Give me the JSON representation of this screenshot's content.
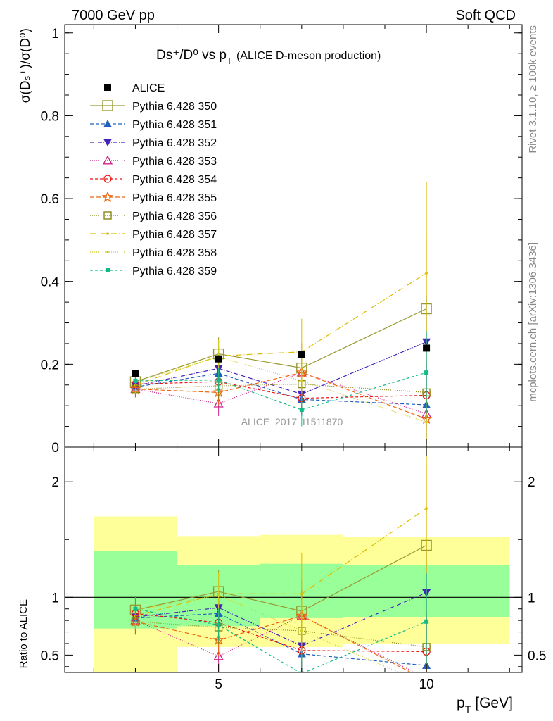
{
  "header": {
    "left_label": "7000 GeV pp",
    "right_label": "Soft QCD"
  },
  "side_labels": {
    "rivet": "Rivet 3.1.10, ≥ 100k events",
    "mcplots": "mcplots.cern.ch [arXiv:1306.3436]"
  },
  "watermark": "ALICE_2017_I1511870",
  "colors": {
    "ratio_band_outer": "#ffff99",
    "ratio_band_inner": "#99ff99",
    "reference_line": "#000000"
  },
  "chart_data": {
    "type": "line",
    "title_main": "Ds⁺/D⁰ vs p",
    "title_sub": "T",
    "title_extra": "(ALICE D-meson production)",
    "xlabel": "p",
    "xlabel_sub": "T",
    "xlabel_unit": "[GeV]",
    "ylabel": "σ(Dₛ⁺)/σ(D⁰)",
    "ratio_ylabel": "Ratio to ALICE",
    "xlim": [
      1.3,
      12.3
    ],
    "ylim": [
      0,
      1.02
    ],
    "ratio_ylim": [
      0.35,
      2.3
    ],
    "x_ticks": [
      5,
      10
    ],
    "y_ticks": [
      0,
      0.2,
      0.4,
      0.6,
      0.8,
      1
    ],
    "y_tick_labels": [
      "0",
      "0.2",
      "0.4",
      "0.6",
      "0.8",
      "1"
    ],
    "ratio_ticks": [
      0.5,
      1,
      2
    ],
    "ratio_tick_labels": [
      "0.5",
      "1",
      "2"
    ],
    "grid": false,
    "legend_position": "top-left",
    "x": [
      3,
      5,
      7,
      10
    ],
    "data": {
      "name": "ALICE",
      "x": [
        3,
        5,
        7,
        10
      ],
      "values": [
        0.178,
        0.213,
        0.224,
        0.239
      ],
      "bins": [
        [
          2,
          4
        ],
        [
          4,
          6
        ],
        [
          6,
          8
        ],
        [
          8,
          12
        ]
      ],
      "band_outer": [
        [
          0.35,
          1.7
        ],
        [
          0.57,
          1.53
        ],
        [
          0.57,
          1.54
        ],
        [
          0.6,
          1.52
        ]
      ],
      "band_inner": [
        [
          0.73,
          1.4
        ],
        [
          0.75,
          1.28
        ],
        [
          0.82,
          1.29
        ],
        [
          0.83,
          1.28
        ]
      ]
    },
    "series": [
      {
        "name": "Pythia 6.428 350",
        "color": "#999933",
        "marker": "square-open",
        "dash": "",
        "values": [
          0.158,
          0.225,
          0.191,
          0.334
        ],
        "err": [
          0.02,
          0.04,
          0.06,
          0.17
        ],
        "ratio": [
          0.89,
          1.05,
          0.88,
          1.45
        ]
      },
      {
        "name": "Pythia 6.428 351",
        "color": "#2060c0",
        "marker": "triangle-up",
        "dash": "5,3",
        "values": [
          0.145,
          0.178,
          0.115,
          0.102
        ],
        "err": [
          0.02,
          0.03,
          0.04,
          0.08
        ],
        "ratio": [
          0.82,
          0.86,
          0.51,
          0.41
        ]
      },
      {
        "name": "Pythia 6.428 352",
        "color": "#4422bb",
        "marker": "triangle-down",
        "dash": "6,2,1,2",
        "values": [
          0.148,
          0.19,
          0.128,
          0.254
        ],
        "err": [
          0.02,
          0.03,
          0.04,
          0.11
        ],
        "ratio": [
          0.83,
          0.91,
          0.58,
          1.04
        ]
      },
      {
        "name": "Pythia 6.428 353",
        "color": "#cc2288",
        "marker": "triangle-up-open",
        "dash": "1,2",
        "values": [
          0.14,
          0.105,
          0.18,
          0.08
        ],
        "err": [
          0.02,
          0.03,
          0.05,
          0.06
        ],
        "ratio": [
          0.8,
          0.49,
          0.84,
          0.3
        ]
      },
      {
        "name": "Pythia 6.428 354",
        "color": "#ee1111",
        "marker": "circle-open",
        "dash": "4,3",
        "values": [
          0.152,
          0.158,
          0.118,
          0.125
        ],
        "err": [
          0.02,
          0.03,
          0.04,
          0.08
        ],
        "ratio": [
          0.86,
          0.78,
          0.54,
          0.53
        ]
      },
      {
        "name": "Pythia 6.428 355",
        "color": "#ee6611",
        "marker": "star-open",
        "dash": "6,3",
        "values": [
          0.14,
          0.132,
          0.18,
          0.068
        ],
        "err": [
          0.02,
          0.03,
          0.05,
          0.06
        ],
        "ratio": [
          0.79,
          0.63,
          0.84,
          0.28
        ]
      },
      {
        "name": "Pythia 6.428 356",
        "color": "#888811",
        "marker": "square-open-small",
        "dash": "1,2",
        "values": [
          0.14,
          0.148,
          0.152,
          0.132
        ],
        "err": [
          0.02,
          0.03,
          0.05,
          0.07
        ],
        "ratio": [
          0.79,
          0.74,
          0.71,
          0.57
        ]
      },
      {
        "name": "Pythia 6.428 357",
        "color": "#ddbb00",
        "marker": "dot",
        "dash": "8,3,1,3",
        "values": [
          0.15,
          0.22,
          0.23,
          0.42
        ],
        "err": [
          0.02,
          0.04,
          0.08,
          0.22
        ],
        "ratio": [
          0.84,
          1.03,
          1.03,
          1.77
        ]
      },
      {
        "name": "Pythia 6.428 358",
        "color": "#cccc22",
        "marker": "dot",
        "dash": "1,2",
        "values": [
          0.158,
          0.218,
          0.16,
          0.06
        ],
        "err": [
          0.02,
          0.04,
          0.06,
          0.05
        ],
        "ratio": [
          0.89,
          1.02,
          0.71,
          0.25
        ]
      },
      {
        "name": "Pythia 6.428 359",
        "color": "#11bb88",
        "marker": "square-small",
        "dash": "4,3",
        "values": [
          0.16,
          0.162,
          0.09,
          0.18
        ],
        "err": [
          0.02,
          0.03,
          0.04,
          0.1
        ],
        "ratio": [
          0.9,
          0.76,
          0.34,
          0.79
        ]
      }
    ]
  }
}
